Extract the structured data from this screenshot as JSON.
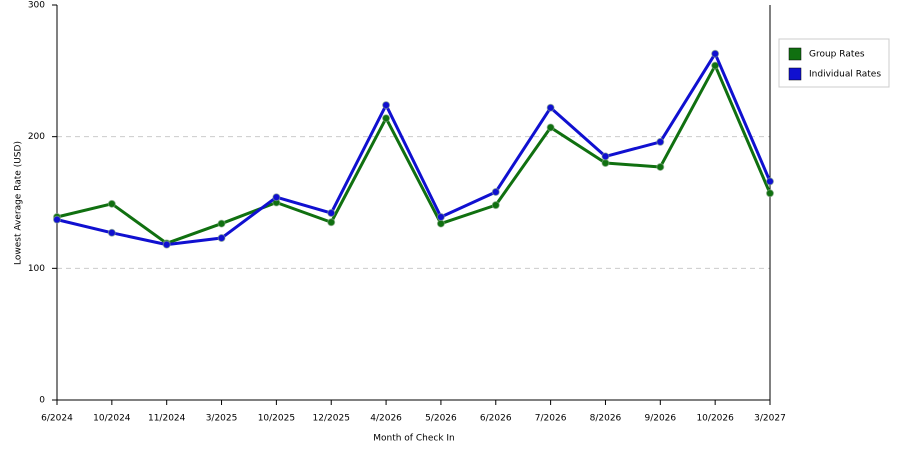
{
  "chart_data": {
    "type": "line",
    "x_label": "Month of Check In",
    "y_label": "Lowest Average Rate (USD)",
    "categories": [
      "6/2024",
      "10/2024",
      "11/2024",
      "3/2025",
      "10/2025",
      "12/2025",
      "4/2026",
      "5/2026",
      "6/2026",
      "7/2026",
      "8/2026",
      "9/2026",
      "10/2026",
      "3/2027"
    ],
    "series": [
      {
        "name": "Group Rates",
        "color": "#107010",
        "values": [
          139,
          149,
          119,
          134,
          150,
          135,
          214,
          134,
          148,
          207,
          180,
          177,
          254,
          157
        ]
      },
      {
        "name": "Individual Rates",
        "color": "#1010d0",
        "values": [
          137,
          127,
          118,
          123,
          154,
          142,
          224,
          139,
          158,
          222,
          185,
          196,
          263,
          166
        ]
      }
    ],
    "ylim": [
      0,
      300
    ],
    "yticks": [
      0,
      100,
      200,
      300
    ],
    "grid": true,
    "legend": "right"
  }
}
